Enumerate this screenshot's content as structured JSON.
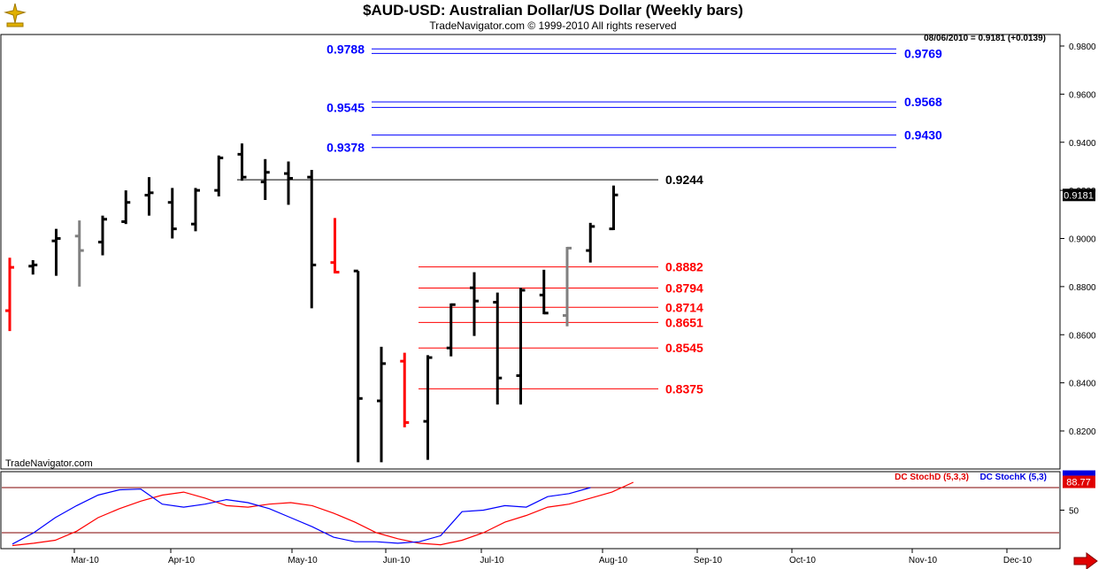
{
  "header": {
    "title": "$AUD-USD:  Australian Dollar/US Dollar  (Weekly bars)",
    "subtitle": "TradeNavigator.com © 1999-2010 All rights reserved",
    "quote": "08/06/2010 = 0.9181 (+0.0139)",
    "watermark": "TradeNavigator.com",
    "last_price_tag": "0.9181"
  },
  "colors": {
    "up_bar": "#000000",
    "down_bar": "#ff0000",
    "neutral_bar": "#808080",
    "resistance_level": "#0000ff",
    "support_level": "#ff0000",
    "reference_level": "#000000",
    "stoch_d": "#ff0000",
    "stoch_k": "#0000ff"
  },
  "chart_data": [
    {
      "type": "ohlc",
      "title": "$AUD-USD:  Australian Dollar/US Dollar  (Weekly bars)",
      "y_axis": {
        "ticks": [
          "0.8200",
          "0.8400",
          "0.8600",
          "0.8800",
          "0.9000",
          "0.9200",
          "0.9400",
          "0.9600",
          "0.9800"
        ],
        "range": [
          0.8065,
          0.9835
        ]
      },
      "x_axis": {
        "ticks": [
          "Mar-10",
          "Apr-10",
          "May-10",
          "Jun-10",
          "Jul-10",
          "Aug-10",
          "Sep-10",
          "Oct-10",
          "Nov-10",
          "Dec-10"
        ]
      },
      "bars": [
        {
          "o": 0.87,
          "h": 0.892,
          "l": 0.8615,
          "c": 0.888,
          "color": "red"
        },
        {
          "o": 0.8885,
          "h": 0.891,
          "l": 0.885,
          "c": 0.889,
          "color": "black"
        },
        {
          "o": 0.899,
          "h": 0.904,
          "l": 0.8845,
          "c": 0.9,
          "color": "black"
        },
        {
          "o": 0.901,
          "h": 0.9075,
          "l": 0.88,
          "c": 0.895,
          "color": "gray"
        },
        {
          "o": 0.8985,
          "h": 0.9095,
          "l": 0.893,
          "c": 0.908,
          "color": "black"
        },
        {
          "o": 0.907,
          "h": 0.92,
          "l": 0.906,
          "c": 0.915,
          "color": "black"
        },
        {
          "o": 0.918,
          "h": 0.9255,
          "l": 0.9095,
          "c": 0.919,
          "color": "black"
        },
        {
          "o": 0.915,
          "h": 0.921,
          "l": 0.9,
          "c": 0.904,
          "color": "black"
        },
        {
          "o": 0.906,
          "h": 0.921,
          "l": 0.903,
          "c": 0.92,
          "color": "black"
        },
        {
          "o": 0.92,
          "h": 0.9345,
          "l": 0.9175,
          "c": 0.9335,
          "color": "black"
        },
        {
          "o": 0.935,
          "h": 0.9395,
          "l": 0.924,
          "c": 0.9255,
          "color": "black"
        },
        {
          "o": 0.9235,
          "h": 0.933,
          "l": 0.916,
          "c": 0.9275,
          "color": "black"
        },
        {
          "o": 0.927,
          "h": 0.932,
          "l": 0.914,
          "c": 0.925,
          "color": "black"
        },
        {
          "o": 0.9255,
          "h": 0.9285,
          "l": 0.871,
          "c": 0.889,
          "color": "black"
        },
        {
          "o": 0.89,
          "h": 0.9085,
          "l": 0.8855,
          "c": 0.886,
          "color": "red"
        },
        {
          "o": 0.8865,
          "h": 0.8865,
          "l": 0.807,
          "c": 0.8335,
          "color": "black"
        },
        {
          "o": 0.8325,
          "h": 0.855,
          "l": 0.807,
          "c": 0.848,
          "color": "black"
        },
        {
          "o": 0.849,
          "h": 0.8525,
          "l": 0.8215,
          "c": 0.8235,
          "color": "red"
        },
        {
          "o": 0.824,
          "h": 0.8515,
          "l": 0.808,
          "c": 0.8505,
          "color": "black"
        },
        {
          "o": 0.8545,
          "h": 0.873,
          "l": 0.851,
          "c": 0.8725,
          "color": "black"
        },
        {
          "o": 0.8795,
          "h": 0.886,
          "l": 0.8595,
          "c": 0.874,
          "color": "black"
        },
        {
          "o": 0.8735,
          "h": 0.8775,
          "l": 0.831,
          "c": 0.842,
          "color": "black"
        },
        {
          "o": 0.843,
          "h": 0.8795,
          "l": 0.831,
          "c": 0.8785,
          "color": "black"
        },
        {
          "o": 0.8765,
          "h": 0.887,
          "l": 0.8685,
          "c": 0.869,
          "color": "black"
        },
        {
          "o": 0.868,
          "h": 0.8965,
          "l": 0.8635,
          "c": 0.896,
          "color": "gray"
        },
        {
          "o": 0.895,
          "h": 0.9065,
          "l": 0.89,
          "c": 0.905,
          "color": "black"
        },
        {
          "o": 0.904,
          "h": 0.922,
          "l": 0.9035,
          "c": 0.9181,
          "color": "black"
        }
      ],
      "levels": [
        {
          "label": "0.9788",
          "value": 0.9788,
          "side": "left",
          "color": "blue"
        },
        {
          "label": "0.9769",
          "value": 0.9769,
          "side": "right",
          "color": "blue"
        },
        {
          "label": "0.9568",
          "value": 0.9568,
          "side": "right",
          "color": "blue"
        },
        {
          "label": "0.9545",
          "value": 0.9545,
          "side": "left",
          "color": "blue"
        },
        {
          "label": "0.9430",
          "value": 0.943,
          "side": "right",
          "color": "blue"
        },
        {
          "label": "0.9378",
          "value": 0.9378,
          "side": "left",
          "color": "blue"
        },
        {
          "label": "0.9244",
          "value": 0.9244,
          "side": "right",
          "color": "black"
        },
        {
          "label": "0.8882",
          "value": 0.8882,
          "side": "right",
          "color": "red"
        },
        {
          "label": "0.8794",
          "value": 0.8794,
          "side": "right",
          "color": "red"
        },
        {
          "label": "0.8714",
          "value": 0.8714,
          "side": "right",
          "color": "red"
        },
        {
          "label": "0.8651",
          "value": 0.8651,
          "side": "right",
          "color": "red"
        },
        {
          "label": "0.8545",
          "value": 0.8545,
          "side": "right",
          "color": "red"
        },
        {
          "label": "0.8375",
          "value": 0.8375,
          "side": "right",
          "color": "red"
        }
      ]
    },
    {
      "type": "line",
      "y_axis": {
        "ticks": [
          "50"
        ],
        "range": [
          0,
          100
        ]
      },
      "reference_lines": [
        80,
        20
      ],
      "legend": [
        "DC StochD (5,3,3)",
        "DC StochK (5,3)"
      ],
      "value_tag": "88.77",
      "series": [
        {
          "name": "DC StochD (5,3,3)",
          "color": "red",
          "values": [
            3,
            6,
            10,
            22,
            40,
            52,
            62,
            70,
            74,
            66,
            56,
            54,
            58,
            60,
            56,
            46,
            34,
            20,
            12,
            6,
            4,
            10,
            20,
            34,
            43,
            54,
            58,
            66,
            74,
            87
          ]
        },
        {
          "name": "DC StochK (5,3)",
          "color": "blue",
          "values": [
            5,
            20,
            40,
            56,
            70,
            77,
            78,
            58,
            54,
            58,
            64,
            60,
            52,
            40,
            28,
            14,
            8,
            8,
            6,
            8,
            16,
            48,
            50,
            56,
            54,
            68,
            72,
            80
          ]
        }
      ]
    }
  ]
}
